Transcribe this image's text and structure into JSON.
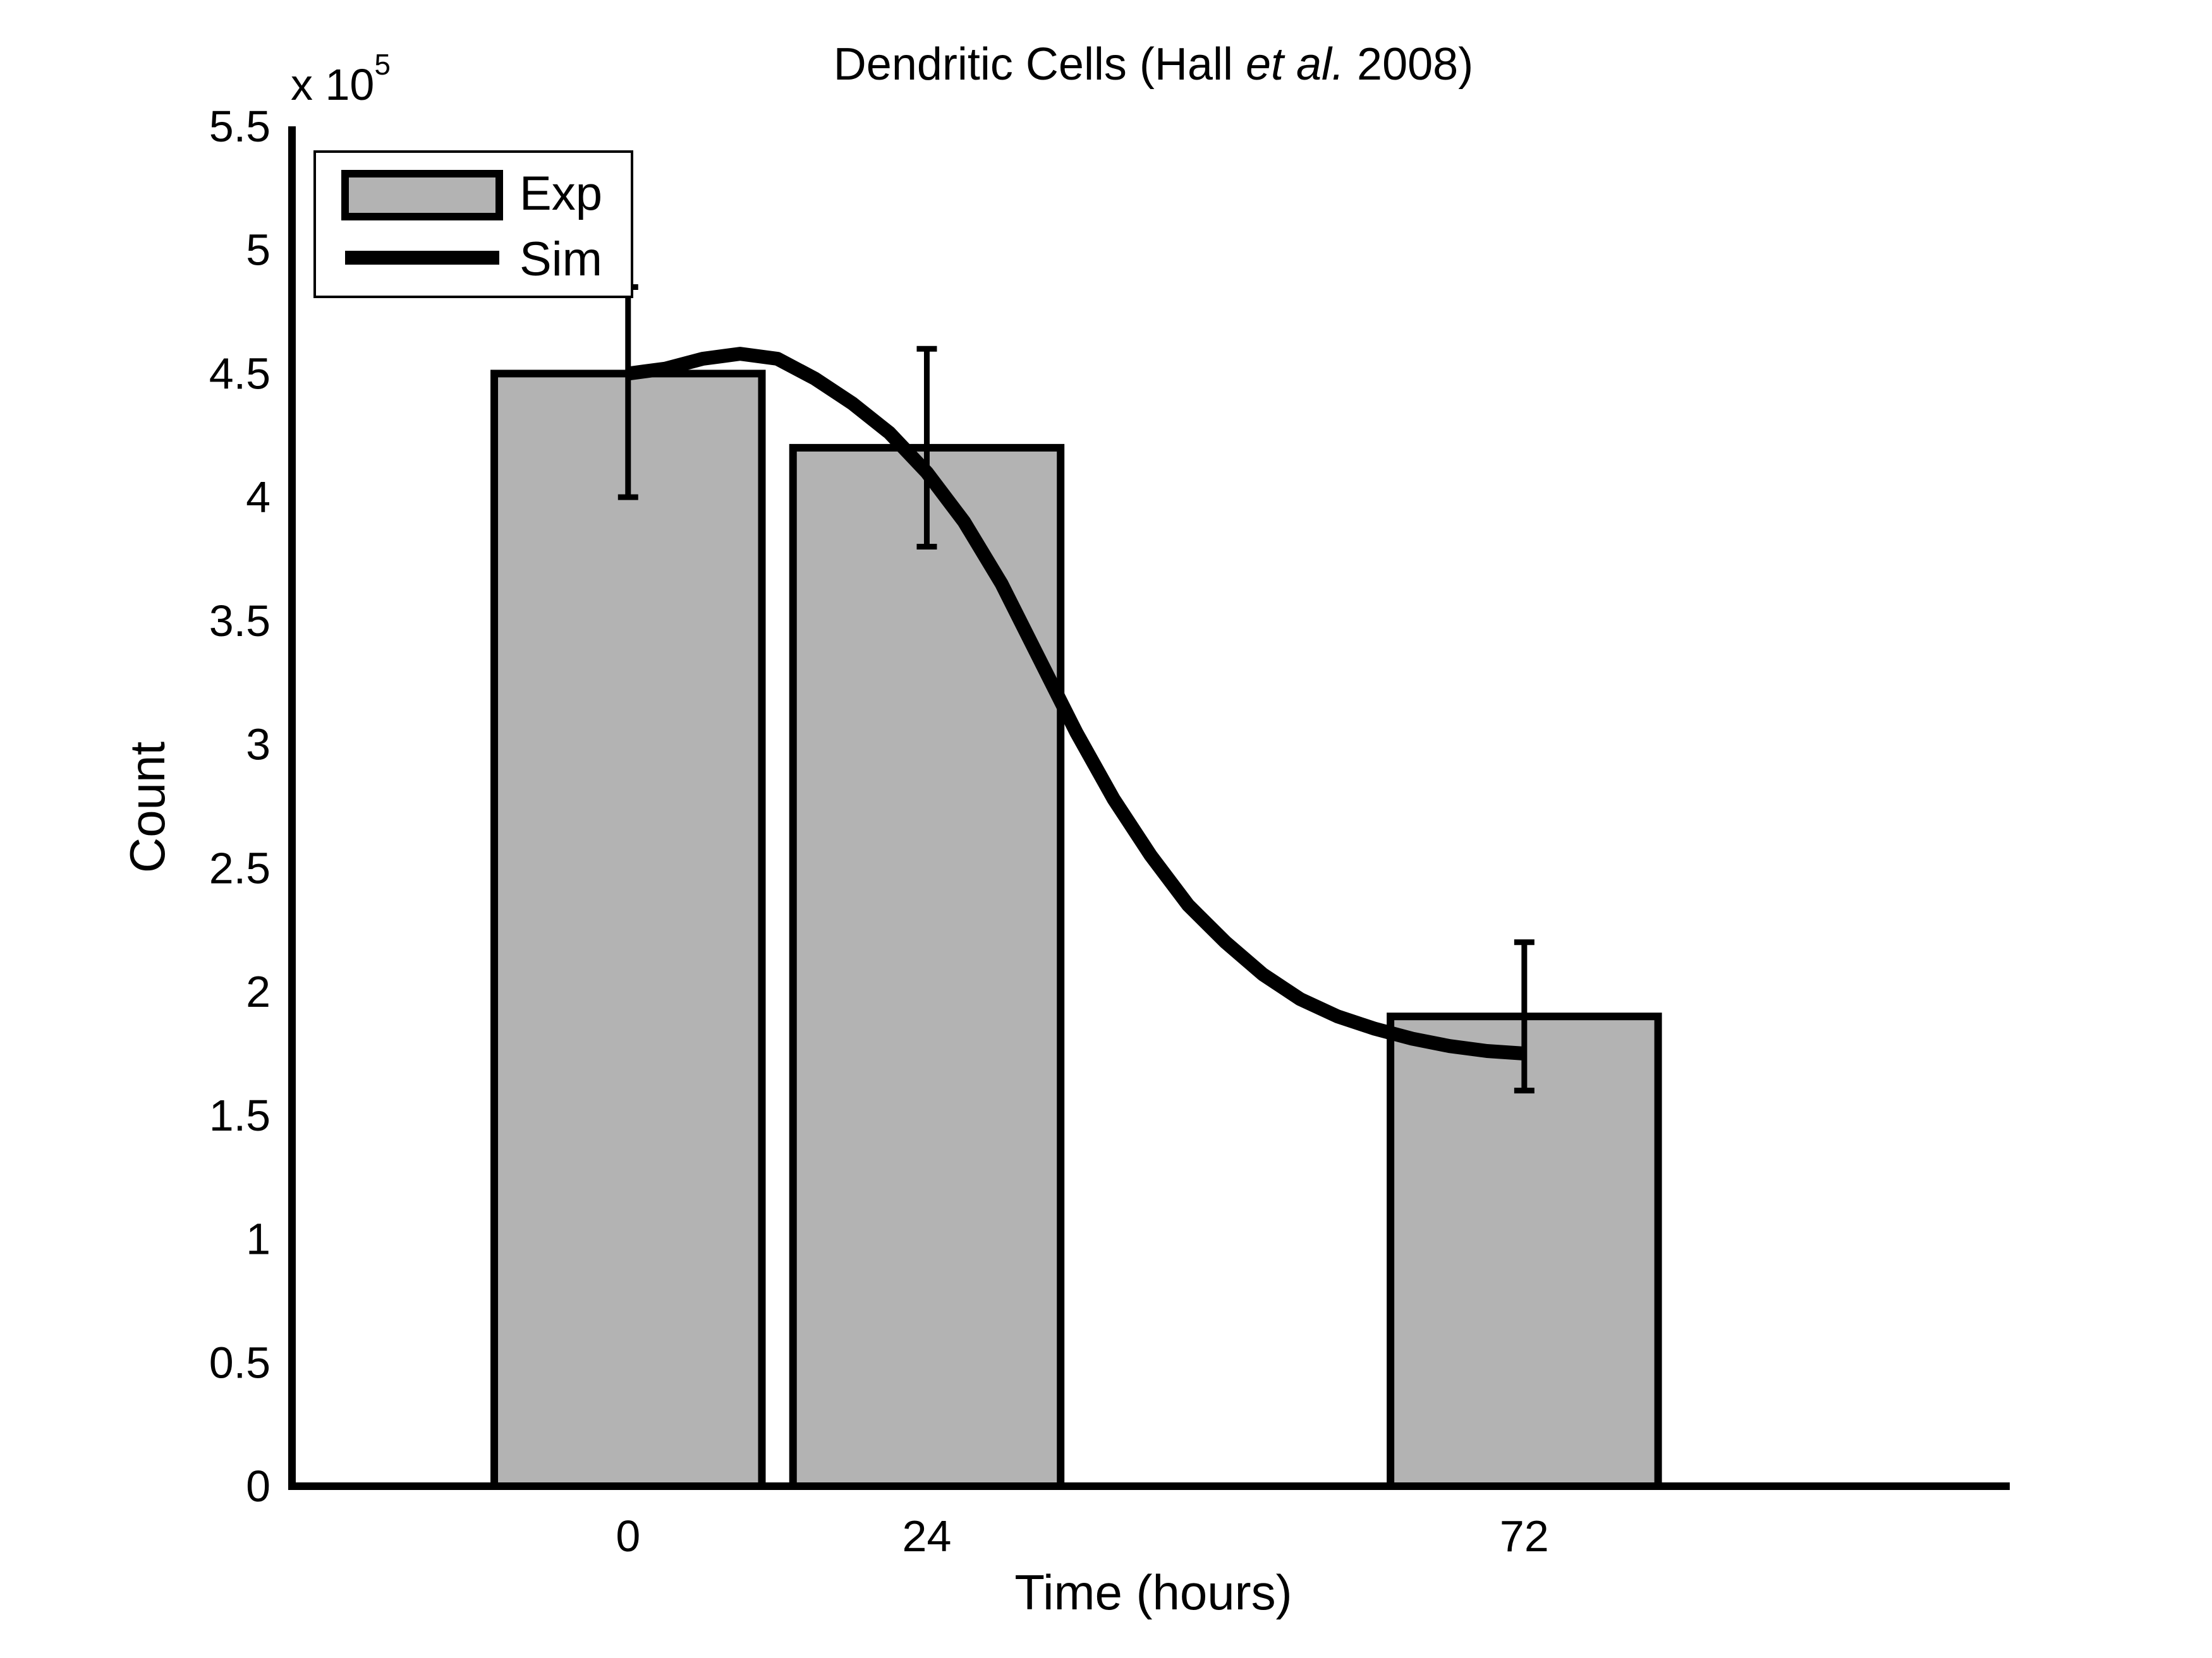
{
  "chart_data": {
    "type": "bar",
    "title": {
      "prefix": "Dendritic Cells (Hall ",
      "italic": "et al.",
      "suffix": " 2008)"
    },
    "xlabel": "Time (hours)",
    "ylabel": "Count",
    "y_multiplier": {
      "base": "x 10",
      "exponent": "5"
    },
    "xlim": [
      -27,
      111
    ],
    "ylim": [
      0,
      5.5
    ],
    "y_ticks": [
      0,
      0.5,
      1,
      1.5,
      2,
      2.5,
      3,
      3.5,
      4,
      4.5,
      5,
      5.5
    ],
    "y_tick_labels": [
      "0",
      "0.5",
      "1",
      "1.5",
      "2",
      "2.5",
      "3",
      "3.5",
      "4",
      "4.5",
      "5",
      "5.5"
    ],
    "categories": [
      "0",
      "24",
      "72"
    ],
    "x_positions": [
      0,
      24,
      72
    ],
    "bar_width_hours": 21.5,
    "series": [
      {
        "name": "Exp",
        "kind": "bar",
        "x": [
          0,
          24,
          72
        ],
        "values": [
          4.5,
          4.2,
          1.9
        ],
        "error_low": [
          4.0,
          3.8,
          1.6
        ],
        "error_high": [
          4.85,
          4.6,
          2.2
        ],
        "fill": "#b3b3b3",
        "stroke": "#000000"
      },
      {
        "name": "Sim",
        "kind": "line",
        "x": [
          0,
          3,
          6,
          9,
          12,
          15,
          18,
          21,
          24,
          27,
          30,
          33,
          36,
          39,
          42,
          45,
          48,
          51,
          54,
          57,
          60,
          63,
          66,
          69,
          72
        ],
        "values": [
          4.5,
          4.52,
          4.56,
          4.58,
          4.56,
          4.48,
          4.38,
          4.26,
          4.1,
          3.9,
          3.65,
          3.35,
          3.05,
          2.78,
          2.55,
          2.35,
          2.2,
          2.07,
          1.97,
          1.9,
          1.85,
          1.81,
          1.78,
          1.76,
          1.75
        ],
        "stroke": "#000000"
      }
    ],
    "legend_position": "top-left",
    "grid": false
  }
}
